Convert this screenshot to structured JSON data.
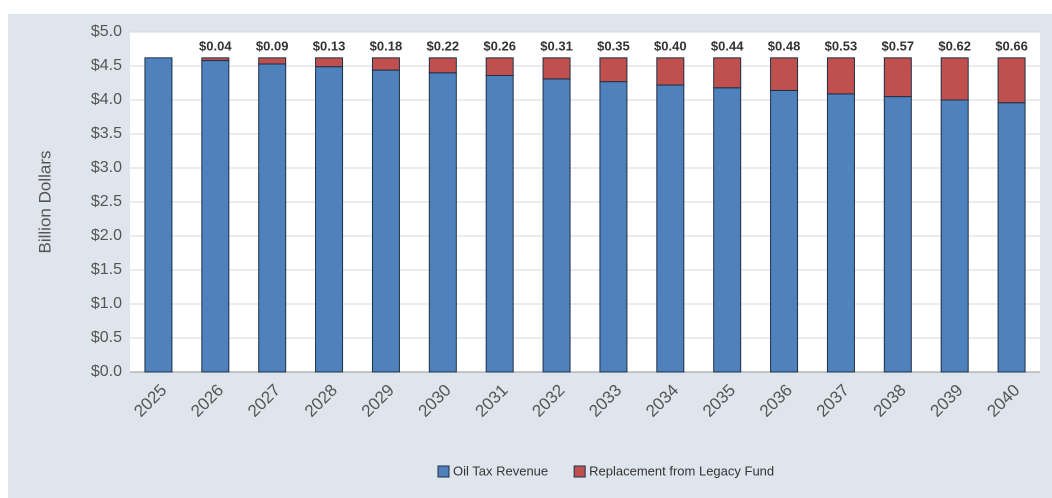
{
  "chart_data": {
    "type": "stacked_bar",
    "y_label": "Billion Dollars",
    "categories": [
      "2025",
      "2026",
      "2027",
      "2028",
      "2029",
      "2030",
      "2031",
      "2032",
      "2033",
      "2034",
      "2035",
      "2036",
      "2037",
      "2038",
      "2039",
      "2040"
    ],
    "series": [
      {
        "name": "Oil Tax Revenue",
        "color": "#4f81bd",
        "values": [
          4.62,
          4.58,
          4.53,
          4.49,
          4.44,
          4.4,
          4.36,
          4.31,
          4.27,
          4.22,
          4.18,
          4.14,
          4.09,
          4.05,
          4.0,
          3.96
        ]
      },
      {
        "name": "Replacement from Legacy Fund",
        "color": "#c0504d",
        "values": [
          0,
          0.04,
          0.09,
          0.13,
          0.18,
          0.22,
          0.26,
          0.31,
          0.35,
          0.4,
          0.44,
          0.48,
          0.53,
          0.57,
          0.62,
          0.66
        ],
        "value_labels": [
          null,
          "$0.04",
          "$0.09",
          "$0.13",
          "$0.18",
          "$0.22",
          "$0.26",
          "$0.31",
          "$0.35",
          "$0.40",
          "$0.44",
          "$0.48",
          "$0.53",
          "$0.57",
          "$0.62",
          "$0.66"
        ]
      }
    ],
    "ylim": [
      0,
      5
    ],
    "yticks": [
      {
        "value": 0,
        "label": "$0.0"
      },
      {
        "value": 0.5,
        "label": "$0.5"
      },
      {
        "value": 1,
        "label": "$1.0"
      },
      {
        "value": 1.5,
        "label": "$1.5"
      },
      {
        "value": 2,
        "label": "$2.0"
      },
      {
        "value": 2.5,
        "label": "$2.5"
      },
      {
        "value": 3,
        "label": "$3.0"
      },
      {
        "value": 3.5,
        "label": "$3.5"
      },
      {
        "value": 4,
        "label": "$4.0"
      },
      {
        "value": 4.5,
        "label": "$4.5"
      },
      {
        "value": 5,
        "label": "$5.0"
      }
    ],
    "grid": true,
    "legend": "bottom"
  }
}
